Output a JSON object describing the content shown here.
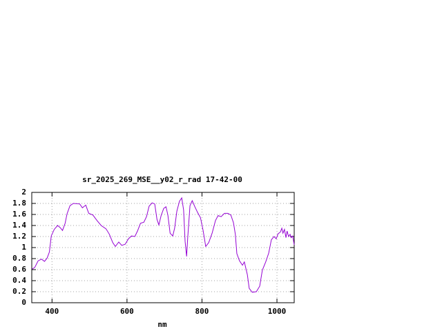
{
  "chart_data": {
    "type": "line",
    "title": "sr_2025_269_MSE__y02_r_rad 17-42-00",
    "x_label": "nm",
    "x": [
      347,
      354,
      363,
      372,
      380,
      387,
      393,
      398,
      406,
      415,
      422,
      428,
      435,
      440,
      448,
      457,
      474,
      481,
      490,
      498,
      509,
      520,
      531,
      544,
      553,
      562,
      569,
      578,
      586,
      595,
      604,
      612,
      621,
      628,
      636,
      645,
      652,
      659,
      667,
      674,
      680,
      685,
      691,
      698,
      704,
      709,
      715,
      722,
      727,
      733,
      740,
      746,
      751,
      755,
      759,
      762,
      768,
      774,
      781,
      788,
      796,
      803,
      810,
      818,
      827,
      836,
      843,
      851,
      860,
      869,
      877,
      884,
      889,
      893,
      900,
      908,
      913,
      921,
      926,
      934,
      945,
      954,
      961,
      970,
      978,
      985,
      992,
      998,
      1003,
      1009,
      1013,
      1016,
      1020,
      1024,
      1027,
      1031,
      1035,
      1038,
      1042,
      1046
    ],
    "values": [
      0.61,
      0.64,
      0.76,
      0.79,
      0.75,
      0.81,
      0.92,
      1.21,
      1.33,
      1.4,
      1.36,
      1.31,
      1.44,
      1.61,
      1.76,
      1.8,
      1.79,
      1.72,
      1.77,
      1.62,
      1.59,
      1.49,
      1.4,
      1.34,
      1.24,
      1.09,
      1.02,
      1.1,
      1.04,
      1.06,
      1.16,
      1.21,
      1.2,
      1.3,
      1.44,
      1.46,
      1.56,
      1.75,
      1.81,
      1.79,
      1.51,
      1.41,
      1.58,
      1.71,
      1.74,
      1.59,
      1.26,
      1.21,
      1.35,
      1.66,
      1.84,
      1.9,
      1.68,
      1.11,
      0.84,
      1.18,
      1.76,
      1.85,
      1.74,
      1.64,
      1.54,
      1.31,
      1.02,
      1.09,
      1.26,
      1.49,
      1.58,
      1.56,
      1.62,
      1.62,
      1.59,
      1.45,
      1.24,
      0.89,
      0.76,
      0.68,
      0.74,
      0.51,
      0.26,
      0.19,
      0.2,
      0.3,
      0.59,
      0.74,
      0.9,
      1.14,
      1.2,
      1.16,
      1.25,
      1.28,
      1.35,
      1.26,
      1.33,
      1.18,
      1.3,
      1.2,
      1.24,
      1.18,
      1.21,
      1.05
    ],
    "color": "#9400d3",
    "xlim": [
      346,
      1046
    ],
    "ylim": [
      0,
      2
    ],
    "xticks": [
      400,
      600,
      800,
      1000
    ],
    "yticks": [
      0,
      0.2,
      0.4,
      0.6,
      0.8,
      1,
      1.2,
      1.4,
      1.6,
      1.8,
      2
    ],
    "grid": true
  }
}
